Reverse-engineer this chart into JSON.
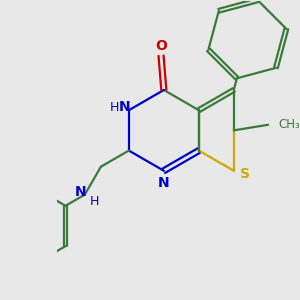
{
  "bg_color": "#e8e8e8",
  "bond_color": "#3a7a3a",
  "n_color": "#0000cc",
  "o_color": "#cc0000",
  "s_color": "#ccaa00",
  "f_color": "#999999",
  "lw": 1.6,
  "dbo": 0.045,
  "xlim": [
    -0.5,
    3.8
  ],
  "ylim": [
    -2.8,
    2.5
  ]
}
